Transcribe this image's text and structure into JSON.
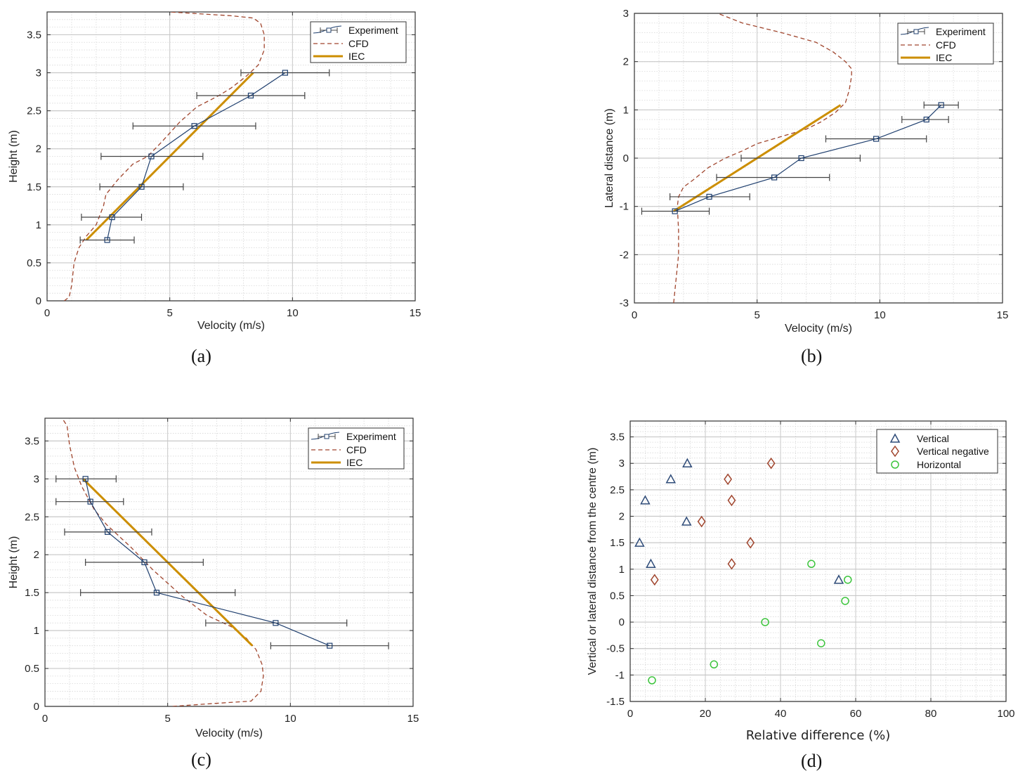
{
  "captions": [
    "(a)",
    "(b)",
    "(c)",
    "(d)"
  ],
  "colors": {
    "experiment": "#1f3f6e",
    "errorbar": "#444444",
    "cfd": "#a0452d",
    "iec": "#cc8e00",
    "vertical": "#2e4b78",
    "vertical_negative": "#a0452d",
    "horizontal": "#3cc43c",
    "grid_major": "#c8c8c8",
    "grid_minor": "#d8d8d8"
  },
  "chart_data": [
    {
      "id": "a",
      "type": "line",
      "xlabel": "Velocity (m/s)",
      "ylabel": "Height (m)",
      "xlim": [
        0,
        15
      ],
      "ylim": [
        0,
        3.8
      ],
      "xticks": [
        0,
        5,
        10,
        15
      ],
      "yticks": [
        0,
        0.5,
        1,
        1.5,
        2,
        2.5,
        3,
        3.5
      ],
      "grid": true,
      "legend_position": "top-right",
      "legend": [
        "Experiment",
        "CFD",
        "IEC"
      ],
      "series": [
        {
          "name": "Experiment",
          "style": "line-square-errorbar",
          "x": [
            2.45,
            2.65,
            3.85,
            4.25,
            6.0,
            8.3,
            9.7
          ],
          "y": [
            0.8,
            1.1,
            1.5,
            1.9,
            2.3,
            2.7,
            3.0
          ],
          "xerr_low": [
            1.35,
            1.4,
            2.15,
            2.2,
            3.5,
            6.1,
            7.9
          ],
          "xerr_high": [
            3.55,
            3.85,
            5.55,
            6.35,
            8.5,
            10.5,
            11.5
          ]
        },
        {
          "name": "CFD",
          "style": "dashed",
          "x": [
            0.7,
            0.9,
            1.0,
            1.1,
            1.3,
            1.6,
            2.0,
            2.3,
            2.4,
            2.9,
            3.5,
            4.1,
            4.7,
            5.4,
            6.1,
            7.0,
            7.5,
            8.1,
            8.6,
            8.85,
            8.85,
            8.7,
            8.4,
            7.5,
            6.0,
            5.0
          ],
          "y": [
            0,
            0.05,
            0.2,
            0.5,
            0.7,
            0.85,
            1.0,
            1.25,
            1.4,
            1.6,
            1.8,
            1.9,
            2.1,
            2.35,
            2.55,
            2.7,
            2.8,
            2.95,
            3.1,
            3.3,
            3.5,
            3.65,
            3.72,
            3.75,
            3.78,
            3.8
          ]
        },
        {
          "name": "IEC",
          "style": "thick",
          "x": [
            1.6,
            8.4
          ],
          "y": [
            0.8,
            3.0
          ]
        }
      ]
    },
    {
      "id": "b",
      "type": "line",
      "xlabel": "Velocity (m/s)",
      "ylabel": "Lateral distance (m)",
      "xlim": [
        0,
        15
      ],
      "ylim": [
        -3,
        3
      ],
      "xticks": [
        0,
        5,
        10,
        15
      ],
      "yticks": [
        -3,
        -2,
        -1,
        0,
        1,
        2,
        3
      ],
      "grid": true,
      "legend_position": "top-right",
      "legend": [
        "Experiment",
        "CFD",
        "IEC"
      ],
      "series": [
        {
          "name": "Experiment",
          "style": "line-square-errorbar",
          "x": [
            1.65,
            3.05,
            5.7,
            6.8,
            9.85,
            11.9,
            12.5
          ],
          "y": [
            -1.1,
            -0.8,
            -0.4,
            0.0,
            0.4,
            0.8,
            1.1
          ],
          "xerr_low": [
            0.3,
            1.45,
            3.35,
            4.35,
            7.8,
            10.9,
            11.8
          ],
          "xerr_high": [
            3.05,
            4.7,
            7.95,
            9.2,
            11.9,
            12.8,
            13.2
          ]
        },
        {
          "name": "CFD",
          "style": "dashed",
          "x": [
            1.6,
            1.7,
            1.8,
            1.8,
            1.75,
            1.8,
            2.0,
            2.4,
            3.0,
            3.7,
            4.4,
            5.0,
            6.0,
            7.0,
            7.6,
            8.2,
            8.6,
            8.75,
            8.85,
            8.85,
            8.6,
            8.1,
            7.4,
            6.0,
            4.4,
            3.4
          ],
          "y": [
            -3,
            -2.5,
            -2.0,
            -1.5,
            -1.0,
            -0.8,
            -0.6,
            -0.45,
            -0.2,
            0.0,
            0.15,
            0.3,
            0.45,
            0.6,
            0.75,
            0.95,
            1.15,
            1.4,
            1.7,
            1.85,
            2.0,
            2.2,
            2.4,
            2.6,
            2.8,
            3.0
          ]
        },
        {
          "name": "IEC",
          "style": "thick",
          "x": [
            1.6,
            8.4
          ],
          "y": [
            -1.1,
            1.1
          ]
        }
      ]
    },
    {
      "id": "c",
      "type": "line",
      "xlabel": "Velocity (m/s)",
      "ylabel": "Height (m)",
      "xlim": [
        0,
        15
      ],
      "ylim": [
        0,
        3.8
      ],
      "xticks": [
        0,
        5,
        10,
        15
      ],
      "yticks": [
        0,
        0.5,
        1,
        1.5,
        2,
        2.5,
        3,
        3.5
      ],
      "grid": true,
      "legend_position": "top-right",
      "legend": [
        "Experiment",
        "CFD",
        "IEC"
      ],
      "series": [
        {
          "name": "Experiment",
          "style": "line-square-errorbar",
          "x": [
            11.6,
            9.4,
            4.55,
            4.05,
            2.55,
            1.85,
            1.65
          ],
          "y": [
            0.8,
            1.1,
            1.5,
            1.9,
            2.3,
            2.7,
            3.0
          ],
          "xerr_low": [
            9.2,
            6.55,
            1.45,
            1.65,
            0.8,
            0.45,
            0.45
          ],
          "xerr_high": [
            14.0,
            12.3,
            7.75,
            6.45,
            4.35,
            3.2,
            2.9
          ],
          "xerr_note": ""
        },
        {
          "name": "CFD",
          "style": "dashed",
          "x": [
            5.2,
            6.5,
            8.4,
            8.8,
            8.9,
            8.85,
            8.6,
            8.2,
            7.6,
            6.6,
            5.6,
            4.4,
            3.5,
            2.5,
            2.0,
            1.5,
            1.2,
            1.0,
            0.9,
            0.7
          ],
          "y": [
            0.0,
            0.03,
            0.07,
            0.2,
            0.4,
            0.55,
            0.75,
            0.9,
            1.05,
            1.2,
            1.45,
            1.8,
            2.1,
            2.4,
            2.6,
            2.9,
            3.15,
            3.45,
            3.7,
            3.8
          ]
        },
        {
          "name": "IEC",
          "style": "thick",
          "x": [
            1.55,
            8.45
          ],
          "y": [
            3.0,
            0.8
          ]
        }
      ]
    },
    {
      "id": "d",
      "type": "scatter",
      "xlabel": "Relative difference (%)",
      "ylabel": "Vertical or lateral distance from the centre (m)",
      "xlim": [
        0,
        100
      ],
      "ylim": [
        -1.5,
        3.8
      ],
      "xticks": [
        0,
        20,
        40,
        60,
        80,
        100
      ],
      "yticks": [
        -1.5,
        -1,
        -0.5,
        0,
        0.5,
        1,
        1.5,
        2,
        2.5,
        3,
        3.5
      ],
      "grid": true,
      "legend_position": "top-right",
      "legend": [
        "Vertical",
        "Vertical negative",
        "Horizontal"
      ],
      "series": [
        {
          "name": "Vertical",
          "marker": "triangle",
          "x": [
            55.5,
            5.5,
            2.5,
            15.0,
            4.0,
            10.8,
            15.2
          ],
          "y": [
            0.8,
            1.1,
            1.5,
            1.9,
            2.3,
            2.7,
            3.0
          ]
        },
        {
          "name": "Vertical negative",
          "marker": "diamond",
          "x": [
            6.5,
            27.0,
            32.0,
            19.0,
            27.0,
            26.0,
            37.5
          ],
          "y": [
            0.8,
            1.1,
            1.5,
            1.9,
            2.3,
            2.7,
            3.0
          ]
        },
        {
          "name": "Horizontal",
          "marker": "circle",
          "x": [
            5.8,
            22.3,
            50.8,
            35.9,
            57.2,
            57.9,
            48.2
          ],
          "y": [
            -1.1,
            -0.8,
            -0.4,
            0.0,
            0.4,
            0.8,
            1.1
          ]
        }
      ]
    }
  ]
}
